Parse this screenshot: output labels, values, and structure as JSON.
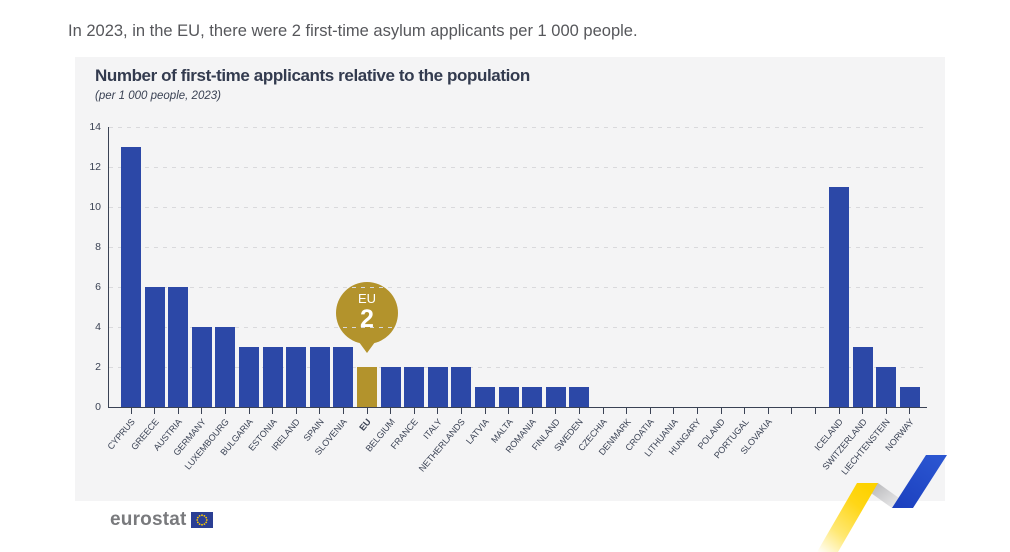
{
  "headline": "In 2023, in the EU, there were 2 first-time asylum applicants per 1 000 people.",
  "card": {
    "title": "Number of first-time applicants relative to the population",
    "subtitle": "(per 1 000 people, 2023)"
  },
  "chart_data": {
    "type": "bar",
    "title": "Number of first-time applicants relative to the population",
    "subtitle": "(per 1 000 people, 2023)",
    "categories": [
      "CYPRUS",
      "GREECE",
      "AUSTRIA",
      "GERMANY",
      "LUXEMBOURG",
      "BULGARIA",
      "ESTONIA",
      "IRELAND",
      "SPAIN",
      "SLOVENIA",
      "EU",
      "BELGIUM",
      "FRANCE",
      "ITALY",
      "NETHERLANDS",
      "LATVIA",
      "MALTA",
      "ROMANIA",
      "FINLAND",
      "SWEDEN",
      "CZECHIA",
      "DENMARK",
      "CROATIA",
      "LITHUANIA",
      "HUNGARY",
      "POLAND",
      "PORTUGAL",
      "SLOVAKIA",
      "ICELAND",
      "SWITZERLAND",
      "LIECHTENSTEIN",
      "NORWAY"
    ],
    "values": [
      13,
      6,
      6,
      4,
      4,
      3,
      3,
      3,
      3,
      3,
      2,
      2,
      2,
      2,
      2,
      1,
      1,
      1,
      1,
      1,
      0,
      0,
      0,
      0,
      0,
      0,
      0,
      0,
      11,
      3,
      2,
      1
    ],
    "highlight_index": 10,
    "gap_after_index": 27,
    "gap_slots": 2,
    "callout": {
      "label": "EU",
      "value": "2"
    },
    "xlabel": "",
    "ylabel": "",
    "ylim": [
      0,
      14
    ],
    "yticks": [
      0,
      2,
      4,
      6,
      8,
      10,
      12,
      14
    ],
    "grid": "horizontal-dashed",
    "legend": "none",
    "colors": {
      "bar": "#2c48a7",
      "highlight": "#b3932c",
      "axis": "#3a4254"
    }
  },
  "footer": {
    "logo_text": "eurostat"
  }
}
